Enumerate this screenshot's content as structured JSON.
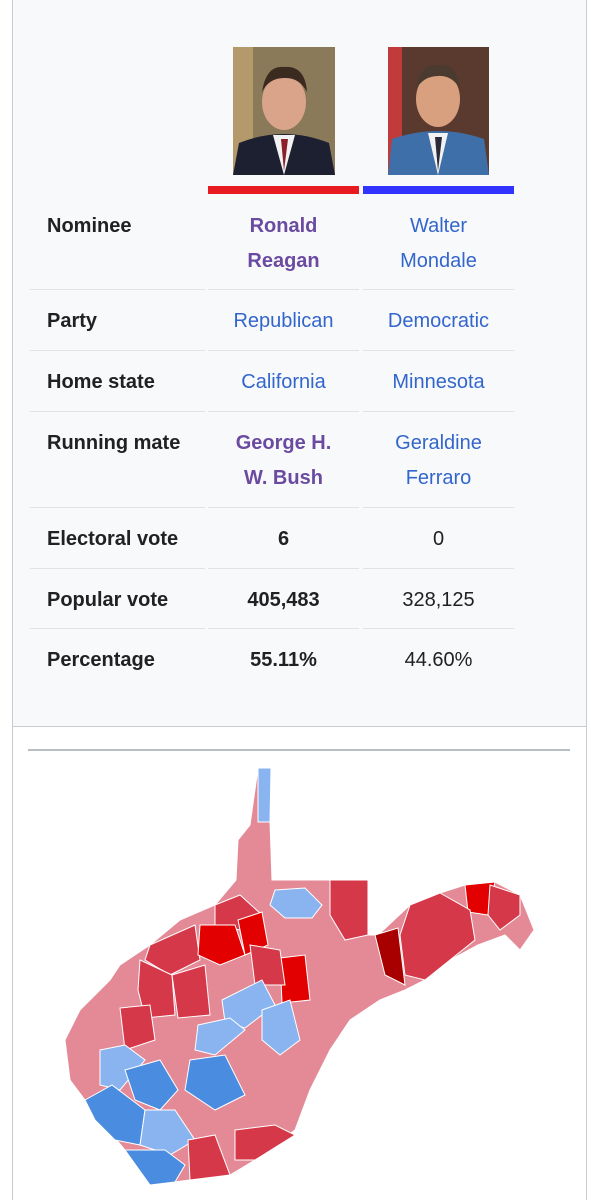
{
  "rows": [
    {
      "label": "Nominee",
      "values": [
        "Ronald Reagan",
        "Walter Mondale"
      ]
    },
    {
      "label": "Party",
      "values": [
        "Republican",
        "Democratic"
      ]
    },
    {
      "label": "Home state",
      "values": [
        "California",
        "Minnesota"
      ]
    },
    {
      "label": "Running mate",
      "values": [
        "George H. W. Bush",
        "Geraldine Ferraro"
      ]
    },
    {
      "label": "Electoral vote",
      "values": [
        "6",
        "0"
      ]
    },
    {
      "label": "Popular vote",
      "values": [
        "405,483",
        "328,125"
      ]
    },
    {
      "label": "Percentage",
      "values": [
        "55.11%",
        "44.60%"
      ]
    }
  ]
}
